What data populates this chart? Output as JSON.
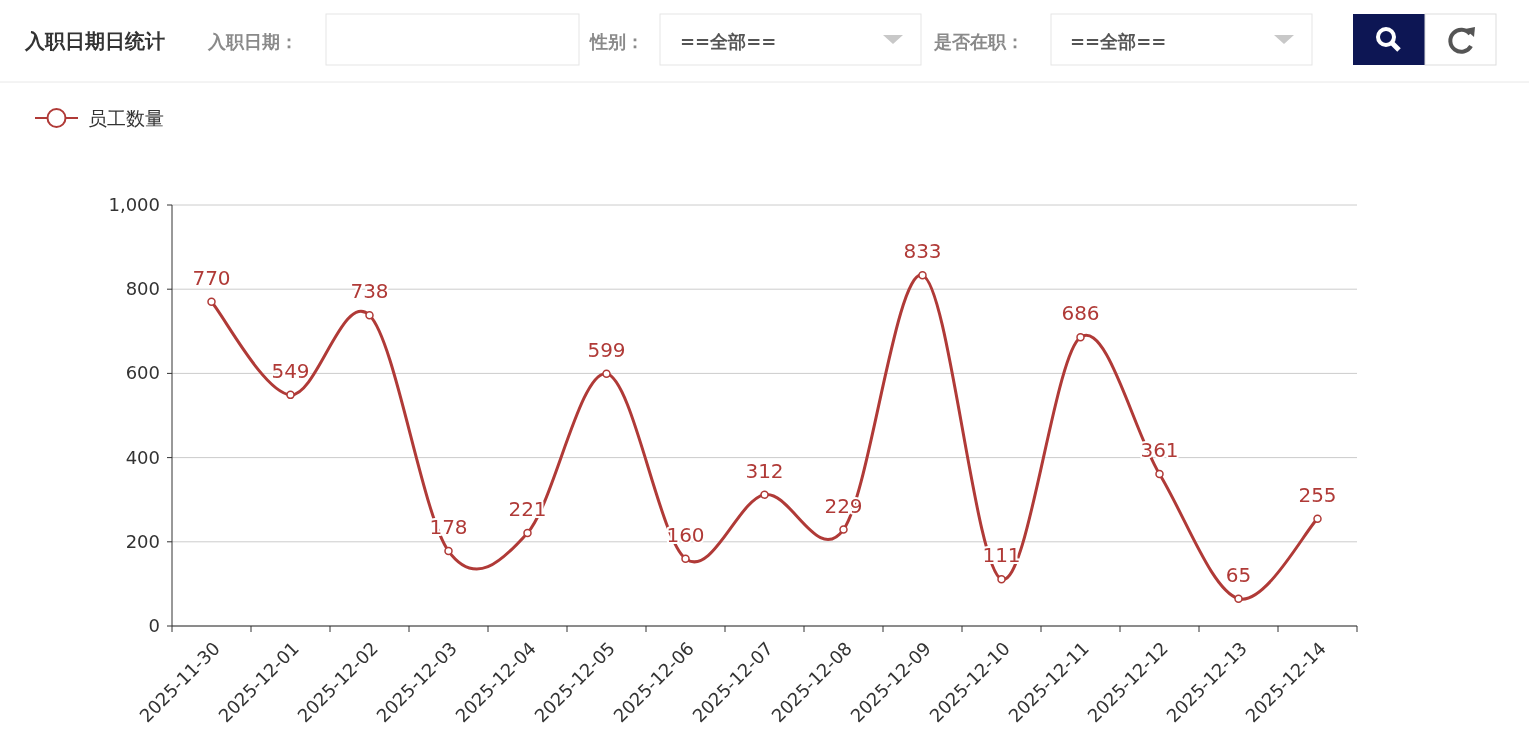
{
  "chart_data": {
    "type": "line",
    "title": "入职日期日统计",
    "annotations": [
      "入职日期：",
      "性别：",
      "==全部==",
      "是否在职：",
      "==全部=="
    ],
    "categories": [
      "2025-11-30",
      "2025-12-01",
      "2025-12-02",
      "2025-12-03",
      "2025-12-04",
      "2025-12-05",
      "2025-12-06",
      "2025-12-07",
      "2025-12-08",
      "2025-12-09",
      "2025-12-10",
      "2025-12-11",
      "2025-12-12",
      "2025-12-13",
      "2025-12-14"
    ],
    "series": [
      {
        "name": "员工数量",
        "color": "#b03a37",
        "values": [
          770,
          549,
          738,
          178,
          221,
          599,
          160,
          312,
          229,
          833,
          111,
          686,
          361,
          65,
          255
        ]
      }
    ],
    "ylim": [
      0,
      1000
    ],
    "yticks": [
      0,
      200,
      400,
      600,
      800,
      {
        "value": 1000,
        "label": "1,000"
      }
    ],
    "grid": "y",
    "legend": "top left",
    "marker": "circle",
    "data_labels": true
  }
}
